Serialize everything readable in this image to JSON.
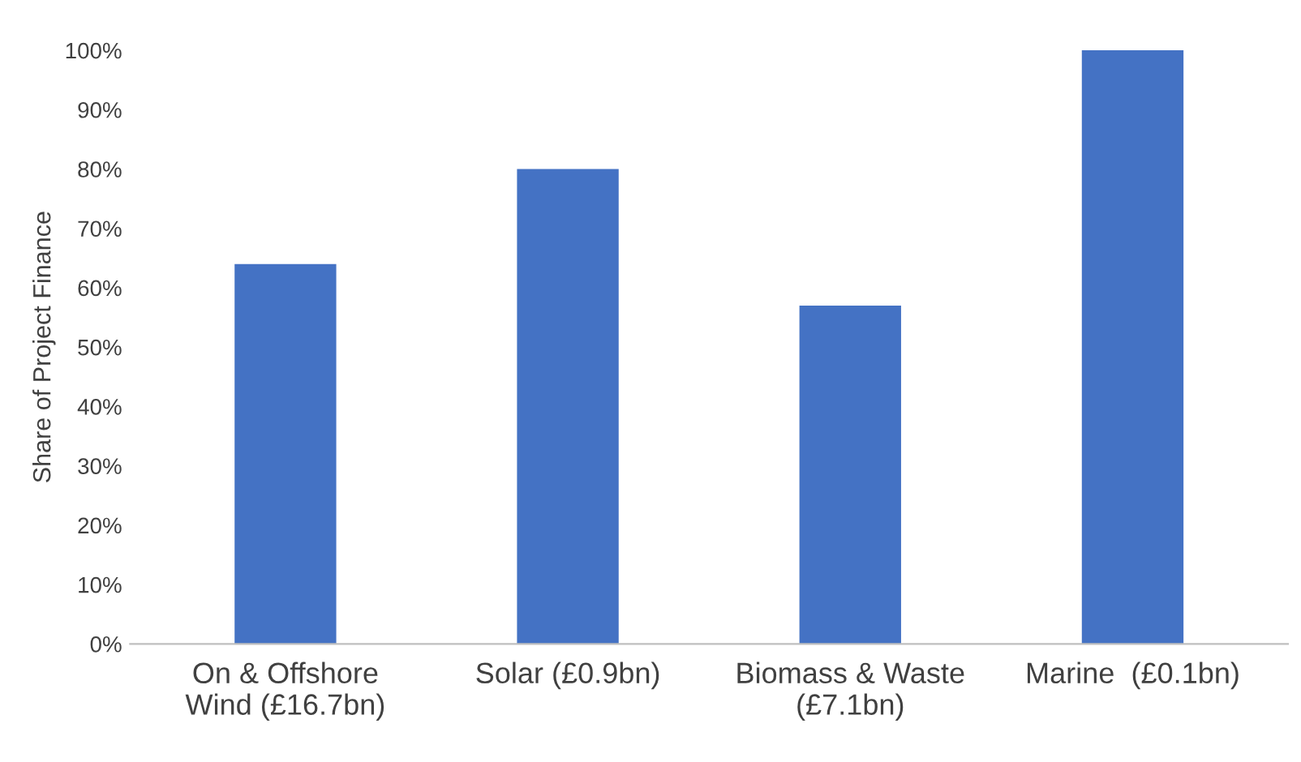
{
  "chart_data": {
    "type": "bar",
    "ylabel": "Share of Project Finance",
    "categories": [
      "On & Offshore\nWind (£16.7bn)",
      "Solar (£0.9bn)",
      "Biomass & Waste\n(£7.1bn)",
      "Marine  (£0.1bn)"
    ],
    "values": [
      64,
      80,
      57,
      100
    ],
    "color": "#4472c4",
    "ylim": [
      0,
      100
    ],
    "yticks": [
      {
        "value": 0,
        "label": "0%"
      },
      {
        "value": 10,
        "label": "10%"
      },
      {
        "value": 20,
        "label": "20%"
      },
      {
        "value": 30,
        "label": "30%"
      },
      {
        "value": 40,
        "label": "40%"
      },
      {
        "value": 50,
        "label": "50%"
      },
      {
        "value": 60,
        "label": "60%"
      },
      {
        "value": 70,
        "label": "70%"
      },
      {
        "value": 80,
        "label": "80%"
      },
      {
        "value": 90,
        "label": "90%"
      },
      {
        "value": 100,
        "label": "100%"
      }
    ],
    "grid": false,
    "legend": false
  }
}
